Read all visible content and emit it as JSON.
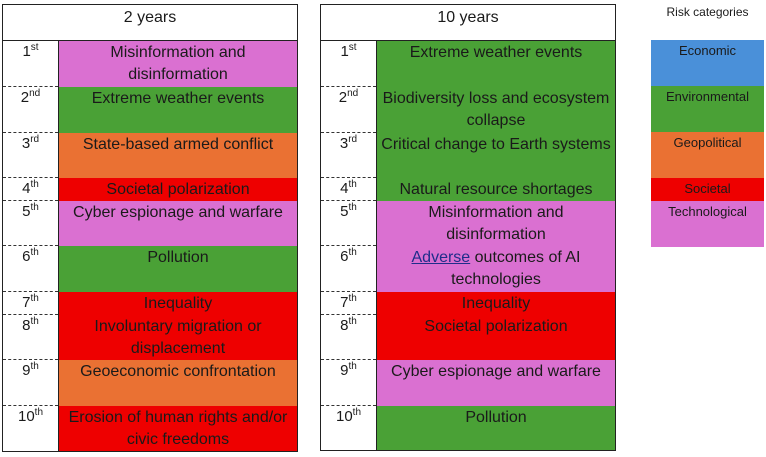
{
  "colors": {
    "Economic": "#4a90d9",
    "Environmental": "#4aa136",
    "Geopolitical": "#ea7133",
    "Societal": "#ee0000",
    "Technological": "#da70d1"
  },
  "panels": [
    {
      "title": "2 years",
      "rows": [
        {
          "num": "1",
          "suffix": "st",
          "text": "Misinformation and disinformation",
          "category": "Technological"
        },
        {
          "num": "2",
          "suffix": "nd",
          "text": "Extreme weather events",
          "category": "Environmental"
        },
        {
          "num": "3",
          "suffix": "rd",
          "text": "State-based armed conflict",
          "category": "Geopolitical"
        },
        {
          "num": "4",
          "suffix": "th",
          "text": "Societal polarization",
          "category": "Societal"
        },
        {
          "num": "5",
          "suffix": "th",
          "text": "Cyber espionage and warfare",
          "category": "Technological"
        },
        {
          "num": "6",
          "suffix": "th",
          "text": "Pollution",
          "category": "Environmental"
        },
        {
          "num": "7",
          "suffix": "th",
          "text": "Inequality",
          "category": "Societal"
        },
        {
          "num": "8",
          "suffix": "th",
          "text": "Involuntary migration or displacement",
          "category": "Societal"
        },
        {
          "num": "9",
          "suffix": "th",
          "text": "Geoeconomic confrontation",
          "category": "Geopolitical"
        },
        {
          "num": "10",
          "suffix": "th",
          "text": "Erosion of human rights and/or civic freedoms",
          "category": "Societal"
        }
      ]
    },
    {
      "title": "10 years",
      "rows": [
        {
          "num": "1",
          "suffix": "st",
          "text": "Extreme weather events",
          "category": "Environmental"
        },
        {
          "num": "2",
          "suffix": "nd",
          "text": "Biodiversity loss and ecosystem collapse",
          "category": "Environmental"
        },
        {
          "num": "3",
          "suffix": "rd",
          "text": "Critical change to Earth systems",
          "category": "Environmental"
        },
        {
          "num": "4",
          "suffix": "th",
          "text": "Natural resource shortages",
          "category": "Environmental"
        },
        {
          "num": "5",
          "suffix": "th",
          "text": "Misinformation and disinformation",
          "category": "Technological"
        },
        {
          "num": "6",
          "suffix": "th",
          "text": "Adverse outcomes of AI technologies",
          "category": "Technological",
          "underline_first_word": true
        },
        {
          "num": "7",
          "suffix": "th",
          "text": "Inequality",
          "category": "Societal"
        },
        {
          "num": "8",
          "suffix": "th",
          "text": "Societal polarization",
          "category": "Societal"
        },
        {
          "num": "9",
          "suffix": "th",
          "text": "Cyber espionage and warfare",
          "category": "Technological"
        },
        {
          "num": "10",
          "suffix": "th",
          "text": "Pollution",
          "category": "Environmental"
        }
      ]
    }
  ],
  "legend": {
    "title": "Risk categories",
    "items": [
      "Economic",
      "Environmental",
      "Geopolitical",
      "Societal",
      "Technological"
    ]
  }
}
